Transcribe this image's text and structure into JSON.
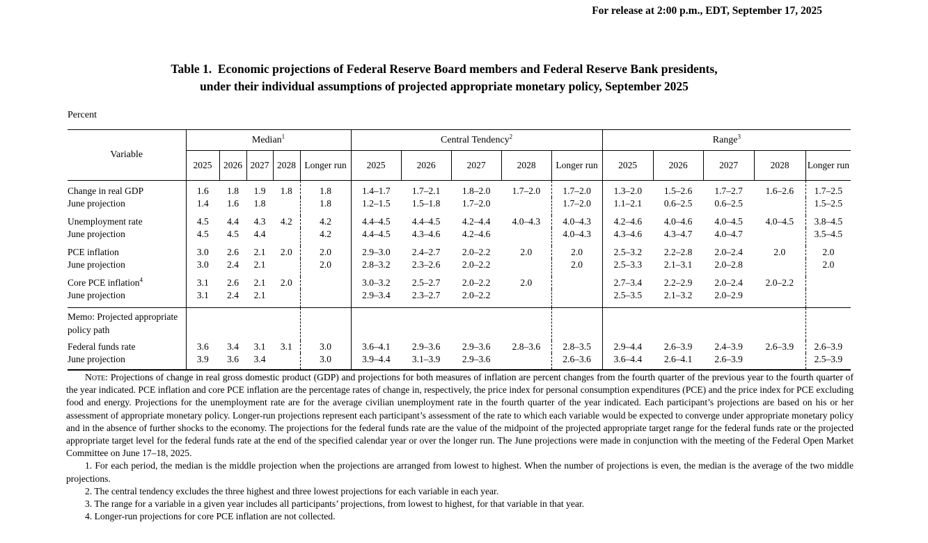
{
  "header": {
    "release_line": "For release at 2:00 p.m., EDT, September 17, 2025"
  },
  "title": {
    "line1": "Table 1. Economic projections of Federal Reserve Board members and Federal Reserve Bank presidents,",
    "line2": "under their individual assumptions of projected appropriate monetary policy, September 2025"
  },
  "table": {
    "unit_label": "Percent",
    "variable_header": "Variable",
    "groups": [
      {
        "label": "Median",
        "sup": "1"
      },
      {
        "label": "Central Tendency",
        "sup": "2"
      },
      {
        "label": "Range",
        "sup": "3"
      }
    ],
    "year_columns": [
      "2025",
      "2026",
      "2027",
      "2028",
      "Longer run"
    ],
    "rows": [
      {
        "variable": "Change in real GDP",
        "indent": false,
        "median": [
          "1.6",
          "1.8",
          "1.9",
          "1.8",
          "1.8"
        ],
        "central_tendency": [
          "1.4–1.7",
          "1.7–2.1",
          "1.8–2.0",
          "1.7–2.0",
          "1.7–2.0"
        ],
        "range": [
          "1.3–2.0",
          "1.5–2.6",
          "1.7–2.7",
          "1.6–2.6",
          "1.7–2.5"
        ]
      },
      {
        "variable": "June projection",
        "indent": true,
        "median": [
          "1.4",
          "1.6",
          "1.8",
          "",
          "1.8"
        ],
        "central_tendency": [
          "1.2–1.5",
          "1.5–1.8",
          "1.7–2.0",
          "",
          "1.7–2.0"
        ],
        "range": [
          "1.1–2.1",
          "0.6–2.5",
          "0.6–2.5",
          "",
          "1.5–2.5"
        ]
      },
      {
        "variable": "Unemployment rate",
        "indent": false,
        "median": [
          "4.5",
          "4.4",
          "4.3",
          "4.2",
          "4.2"
        ],
        "central_tendency": [
          "4.4–4.5",
          "4.4–4.5",
          "4.2–4.4",
          "4.0–4.3",
          "4.0–4.3"
        ],
        "range": [
          "4.2–4.6",
          "4.0–4.6",
          "4.0–4.5",
          "4.0–4.5",
          "3.8–4.5"
        ]
      },
      {
        "variable": "June projection",
        "indent": true,
        "median": [
          "4.5",
          "4.5",
          "4.4",
          "",
          "4.2"
        ],
        "central_tendency": [
          "4.4–4.5",
          "4.3–4.6",
          "4.2–4.6",
          "",
          "4.0–4.3"
        ],
        "range": [
          "4.3–4.6",
          "4.3–4.7",
          "4.0–4.7",
          "",
          "3.5–4.5"
        ]
      },
      {
        "variable": "PCE inflation",
        "indent": false,
        "median": [
          "3.0",
          "2.6",
          "2.1",
          "2.0",
          "2.0"
        ],
        "central_tendency": [
          "2.9–3.0",
          "2.4–2.7",
          "2.0–2.2",
          "2.0",
          "2.0"
        ],
        "range": [
          "2.5–3.2",
          "2.2–2.8",
          "2.0–2.4",
          "2.0",
          "2.0"
        ]
      },
      {
        "variable": "June projection",
        "indent": true,
        "median": [
          "3.0",
          "2.4",
          "2.1",
          "",
          "2.0"
        ],
        "central_tendency": [
          "2.8–3.2",
          "2.3–2.6",
          "2.0–2.2",
          "",
          "2.0"
        ],
        "range": [
          "2.5–3.3",
          "2.1–3.1",
          "2.0–2.8",
          "",
          "2.0"
        ]
      },
      {
        "variable": "Core PCE inflation",
        "sup": "4",
        "indent": false,
        "median": [
          "3.1",
          "2.6",
          "2.1",
          "2.0",
          ""
        ],
        "central_tendency": [
          "3.0–3.2",
          "2.5–2.7",
          "2.0–2.2",
          "2.0",
          ""
        ],
        "range": [
          "2.7–3.4",
          "2.2–2.9",
          "2.0–2.4",
          "2.0–2.2",
          ""
        ]
      },
      {
        "variable": "June projection",
        "indent": true,
        "median": [
          "3.1",
          "2.4",
          "2.1",
          "",
          ""
        ],
        "central_tendency": [
          "2.9–3.4",
          "2.3–2.7",
          "2.0–2.2",
          "",
          ""
        ],
        "range": [
          "2.5–3.5",
          "2.1–3.2",
          "2.0–2.9",
          "",
          ""
        ]
      },
      {
        "memo": true,
        "variable": "Memo: Projected appropriate policy path"
      },
      {
        "variable": "Federal funds rate",
        "indent": false,
        "median": [
          "3.6",
          "3.4",
          "3.1",
          "3.1",
          "3.0"
        ],
        "central_tendency": [
          "3.6–4.1",
          "2.9–3.6",
          "2.9–3.6",
          "2.8–3.6",
          "2.8–3.5"
        ],
        "range": [
          "2.9–4.4",
          "2.6–3.9",
          "2.4–3.9",
          "2.6–3.9",
          "2.6–3.9"
        ]
      },
      {
        "variable": "June projection",
        "indent": true,
        "median": [
          "3.9",
          "3.6",
          "3.4",
          "",
          "3.0"
        ],
        "central_tendency": [
          "3.9–4.4",
          "3.1–3.9",
          "2.9–3.6",
          "",
          "2.6–3.6"
        ],
        "range": [
          "3.6–4.4",
          "2.6–4.1",
          "2.6–3.9",
          "",
          "2.5–3.9"
        ]
      }
    ]
  },
  "notes": {
    "note_label": "Note:",
    "note_text": "Projections of change in real gross domestic product (GDP) and projections for both measures of inflation are percent changes from the fourth quarter of the previous year to the fourth quarter of the year indicated. PCE inflation and core PCE inflation are the percentage rates of change in, respectively, the price index for personal consumption expenditures (PCE) and the price index for PCE excluding food and energy. Projections for the unemployment rate are for the average civilian unemployment rate in the fourth quarter of the year indicated. Each participant’s projections are based on his or her assessment of appropriate monetary policy. Longer-run projections represent each participant’s assessment of the rate to which each variable would be expected to converge under appropriate monetary policy and in the absence of further shocks to the economy. The projections for the federal funds rate are the value of the midpoint of the projected appropriate target range for the federal funds rate or the projected appropriate target level for the federal funds rate at the end of the specified calendar year or over the longer run. The June projections were made in conjunction with the meeting of the Federal Open Market Committee on June 17–18, 2025.",
    "footnotes": [
      "1. For each period, the median is the middle projection when the projections are arranged from lowest to highest. When the number of projections is even, the median is the average of the two middle projections.",
      "2. The central tendency excludes the three highest and three lowest projections for each variable in each year.",
      "3. The range for a variable in a given year includes all participants’ projections, from lowest to highest, for that variable in that year.",
      "4. Longer-run projections for core PCE inflation are not collected."
    ]
  }
}
